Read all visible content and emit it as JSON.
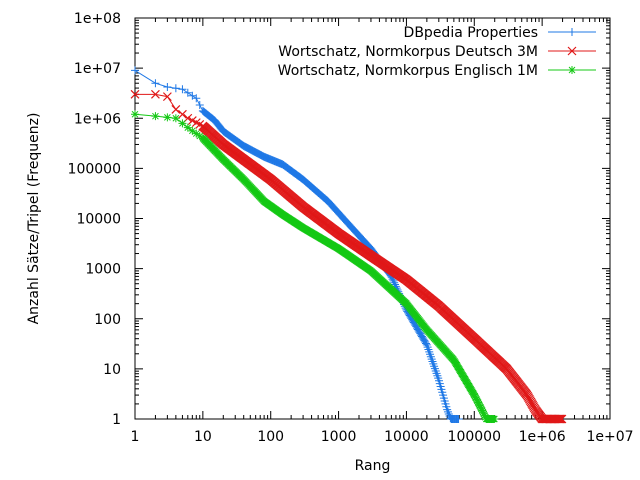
{
  "chart_data": {
    "type": "line",
    "xlabel": "Rang",
    "ylabel": "Anzahl Sätze/Tripel (Frequenz)",
    "xscale": "log",
    "yscale": "log",
    "xlim": [
      1,
      10000000
    ],
    "ylim": [
      1,
      100000000
    ],
    "grid": false,
    "legend_position": "top-right",
    "x_ticks": [
      "1",
      "10",
      "100",
      "1000",
      "10000",
      "100000",
      "1e+06",
      "1e+07"
    ],
    "y_ticks": [
      "1",
      "10",
      "100",
      "1000",
      "10000",
      "100000",
      "1e+06",
      "1e+07",
      "1e+08"
    ],
    "series": [
      {
        "name": "DBpedia Properties",
        "color": "#1f78e6",
        "marker": "plus",
        "points": [
          [
            1,
            9000000
          ],
          [
            2,
            5000000
          ],
          [
            3,
            4200000
          ],
          [
            5,
            3800000
          ],
          [
            8,
            2500000
          ],
          [
            10,
            1400000
          ],
          [
            15,
            900000
          ],
          [
            20,
            550000
          ],
          [
            40,
            280000
          ],
          [
            80,
            170000
          ],
          [
            150,
            120000
          ],
          [
            300,
            60000
          ],
          [
            700,
            22000
          ],
          [
            1500,
            7000
          ],
          [
            3000,
            2500
          ],
          [
            6000,
            700
          ],
          [
            10000,
            150
          ],
          [
            20000,
            30
          ],
          [
            30000,
            6
          ],
          [
            40000,
            1.5
          ],
          [
            45000,
            1
          ],
          [
            60000,
            1
          ]
        ]
      },
      {
        "name": "Wortschatz, Normkorpus Deutsch 3M",
        "color": "#e01818",
        "marker": "cross",
        "points": [
          [
            1,
            3000000
          ],
          [
            2,
            3000000
          ],
          [
            3,
            2700000
          ],
          [
            4,
            1500000
          ],
          [
            6,
            1000000
          ],
          [
            10,
            700000
          ],
          [
            20,
            300000
          ],
          [
            50,
            120000
          ],
          [
            100,
            60000
          ],
          [
            300,
            17000
          ],
          [
            1000,
            5000
          ],
          [
            3000,
            1800
          ],
          [
            10000,
            600
          ],
          [
            30000,
            180
          ],
          [
            100000,
            40
          ],
          [
            300000,
            10
          ],
          [
            600000,
            3
          ],
          [
            800000,
            1.5
          ],
          [
            1000000,
            1
          ],
          [
            2000000,
            1
          ]
        ]
      },
      {
        "name": "Wortschatz, Normkorpus Englisch 1M",
        "color": "#14c814",
        "marker": "star",
        "points": [
          [
            1,
            1200000
          ],
          [
            2,
            1100000
          ],
          [
            4,
            1000000
          ],
          [
            6,
            650000
          ],
          [
            10,
            400000
          ],
          [
            20,
            150000
          ],
          [
            40,
            60000
          ],
          [
            80,
            22000
          ],
          [
            150,
            12000
          ],
          [
            300,
            6500
          ],
          [
            1000,
            2500
          ],
          [
            3000,
            900
          ],
          [
            10000,
            200
          ],
          [
            20000,
            60
          ],
          [
            50000,
            15
          ],
          [
            100000,
            3
          ],
          [
            130000,
            1.5
          ],
          [
            150000,
            1
          ],
          [
            200000,
            1
          ]
        ]
      }
    ]
  }
}
